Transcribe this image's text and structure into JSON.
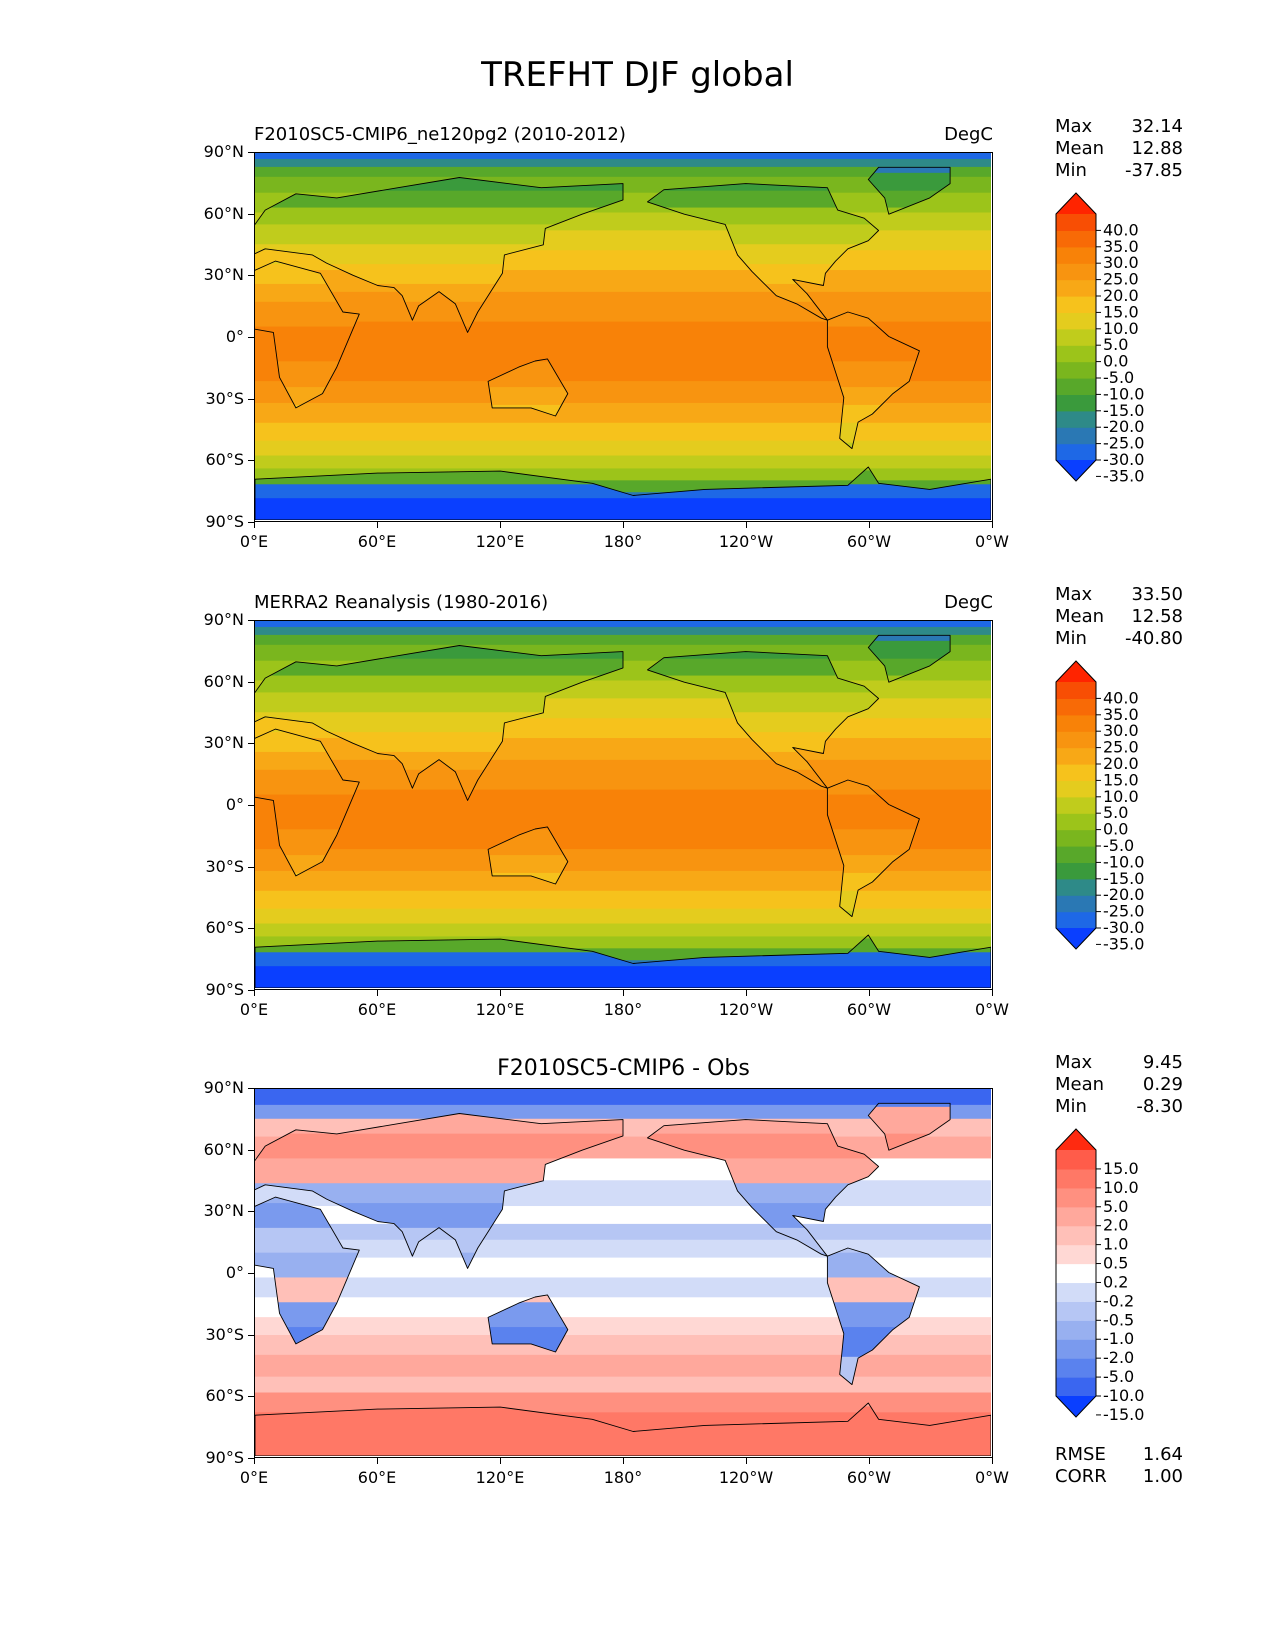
{
  "title": "TREFHT DJF global",
  "colors": {
    "temp": [
      "#0a3fff",
      "#1e68e6",
      "#2a78b4",
      "#2e8a88",
      "#3a9a3c",
      "#58a82a",
      "#7ab61e",
      "#9cc41a",
      "#c0cc1c",
      "#e4cc1e",
      "#f6c21c",
      "#f8a816",
      "#f89410",
      "#f88208",
      "#f86a06",
      "#f84e04",
      "#ff2400"
    ],
    "diff": [
      "#0a3fff",
      "#3a66f0",
      "#5a82ee",
      "#7a9aee",
      "#98b0f0",
      "#b6c6f4",
      "#d2dcf8",
      "#ffffff",
      "#ffd8d4",
      "#ffc0b8",
      "#ffa89c",
      "#ff9080",
      "#ff7866",
      "#ff5c4a",
      "#ff2a10"
    ]
  },
  "panels": [
    {
      "name": "model",
      "left_title": "F2010SC5-CMIP6_ne120pg2 (2010-2012)",
      "center_title": "",
      "units": "DegC",
      "stats": [
        {
          "k": "Max",
          "v": "32.14"
        },
        {
          "k": "Mean",
          "v": "12.88"
        },
        {
          "k": "Min",
          "v": "-37.85"
        }
      ],
      "colorbar": [
        "40.0",
        "35.0",
        "30.0",
        "25.0",
        "20.0",
        "15.0",
        "10.0",
        "5.0",
        "0.0",
        "-5.0",
        "-10.0",
        "-15.0",
        "-20.0",
        "-25.0",
        "-30.0",
        "-35.0"
      ],
      "palette": "temp",
      "lat_ticks": [
        "90°N",
        "60°N",
        "30°N",
        "0°",
        "30°S",
        "60°S",
        "90°S"
      ],
      "lon_ticks": [
        "0°E",
        "60°E",
        "120°E",
        "180°",
        "120°W",
        "60°W",
        "0°W"
      ]
    },
    {
      "name": "obs",
      "left_title": "MERRA2 Reanalysis (1980-2016)",
      "center_title": "",
      "units": "DegC",
      "stats": [
        {
          "k": "Max",
          "v": "33.50"
        },
        {
          "k": "Mean",
          "v": "12.58"
        },
        {
          "k": "Min",
          "v": "-40.80"
        }
      ],
      "colorbar": [
        "40.0",
        "35.0",
        "30.0",
        "25.0",
        "20.0",
        "15.0",
        "10.0",
        "5.0",
        "0.0",
        "-5.0",
        "-10.0",
        "-15.0",
        "-20.0",
        "-25.0",
        "-30.0",
        "-35.0"
      ],
      "palette": "temp",
      "lat_ticks": [
        "90°N",
        "60°N",
        "30°N",
        "0°",
        "30°S",
        "60°S",
        "90°S"
      ],
      "lon_ticks": [
        "0°E",
        "60°E",
        "120°E",
        "180°",
        "120°W",
        "60°W",
        "0°W"
      ]
    },
    {
      "name": "diff",
      "left_title": "",
      "center_title": "F2010SC5-CMIP6 - Obs",
      "units": "",
      "stats": [
        {
          "k": "Max",
          "v": "9.45"
        },
        {
          "k": "Mean",
          "v": "0.29"
        },
        {
          "k": "Min",
          "v": "-8.30"
        }
      ],
      "colorbar": [
        "15.0",
        "10.0",
        "5.0",
        "2.0",
        "1.0",
        "0.5",
        "0.2",
        "-0.2",
        "-0.5",
        "-1.0",
        "-2.0",
        "-5.0",
        "-10.0",
        "-15.0"
      ],
      "palette": "diff",
      "lat_ticks": [
        "90°N",
        "60°N",
        "30°N",
        "0°",
        "30°S",
        "60°S",
        "90°S"
      ],
      "lon_ticks": [
        "0°E",
        "60°E",
        "120°E",
        "180°",
        "120°W",
        "60°W",
        "0°W"
      ],
      "extra_stats": [
        {
          "k": "RMSE",
          "v": "1.64"
        },
        {
          "k": "CORR",
          "v": "1.00"
        }
      ]
    }
  ]
}
